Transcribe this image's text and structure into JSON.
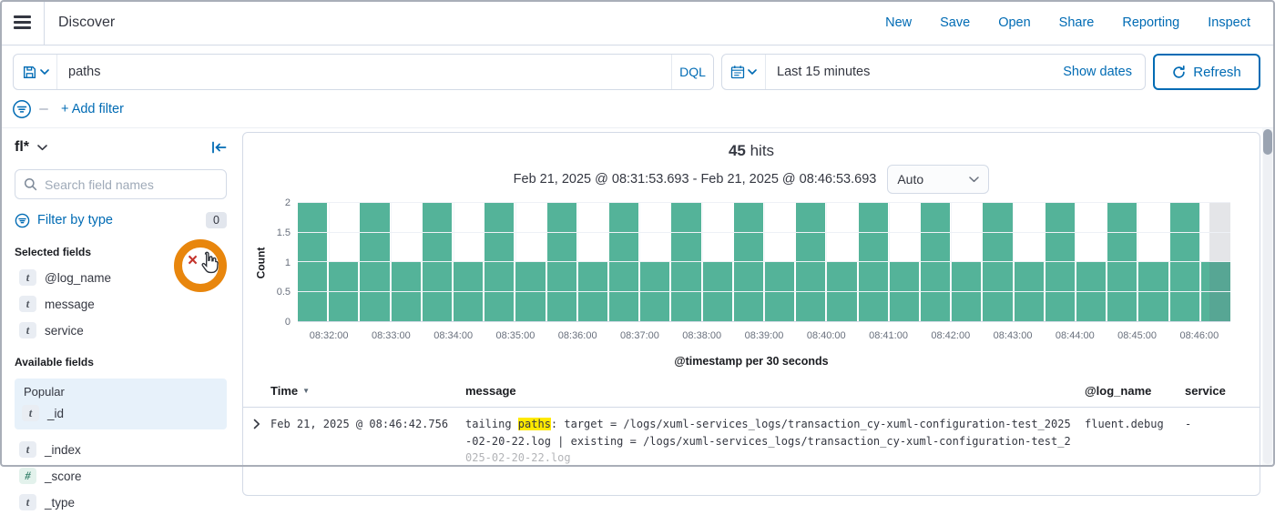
{
  "header": {
    "title": "Discover",
    "nav": [
      {
        "label": "New"
      },
      {
        "label": "Save"
      },
      {
        "label": "Open"
      },
      {
        "label": "Share"
      },
      {
        "label": "Reporting"
      },
      {
        "label": "Inspect"
      }
    ]
  },
  "query_bar": {
    "query": "paths",
    "language_button": "DQL",
    "time_value": "Last 15 minutes",
    "show_dates_label": "Show dates",
    "refresh_label": "Refresh"
  },
  "filter_bar": {
    "add_filter_label": "+ Add filter"
  },
  "sidebar": {
    "index_pattern": "fl*",
    "field_search_placeholder": "Search field names",
    "filter_by_type_label": "Filter by type",
    "filter_by_type_count": "0",
    "selected_fields_title": "Selected fields",
    "selected_fields": [
      {
        "type": "t",
        "name": "@log_name"
      },
      {
        "type": "t",
        "name": "message"
      },
      {
        "type": "t",
        "name": "service"
      }
    ],
    "available_fields_title": "Available fields",
    "popular_label": "Popular",
    "popular_fields": [
      {
        "type": "t",
        "name": "_id"
      }
    ],
    "other_fields": [
      {
        "type": "t",
        "name": "_index"
      },
      {
        "type": "#",
        "name": "_score"
      },
      {
        "type": "t",
        "name": "_type"
      }
    ]
  },
  "results_header": {
    "hits_value": "45",
    "hits_label": "hits",
    "chart_time_range": "Feb 21, 2025 @ 08:31:53.693 - Feb 21, 2025 @ 08:46:53.693",
    "interval_value": "Auto"
  },
  "chart_data": {
    "type": "bar",
    "title": "45 hits",
    "xlabel": "@timestamp per 30 seconds",
    "ylabel": "Count",
    "ylim": [
      0,
      2
    ],
    "yticks": [
      0,
      0.5,
      1,
      1.5,
      2
    ],
    "bucket_interval_seconds": 30,
    "x_tick_labels": [
      "08:32:00",
      "08:33:00",
      "08:34:00",
      "08:35:00",
      "08:36:00",
      "08:37:00",
      "08:38:00",
      "08:39:00",
      "08:40:00",
      "08:41:00",
      "08:42:00",
      "08:43:00",
      "08:44:00",
      "08:45:00",
      "08:46:00"
    ],
    "values": [
      2,
      1,
      2,
      1,
      2,
      1,
      2,
      1,
      2,
      1,
      2,
      1,
      2,
      1,
      2,
      1,
      2,
      1,
      2,
      1,
      2,
      1,
      2,
      1,
      2,
      1,
      2,
      1,
      2,
      1
    ],
    "bar_color": "#54B399",
    "partial_bucket_at_end": true,
    "grid": true,
    "legend": false
  },
  "table": {
    "columns": [
      {
        "label": "Time",
        "sorted": "desc"
      },
      {
        "label": "message"
      },
      {
        "label": "@log_name"
      },
      {
        "label": "service"
      }
    ],
    "rows": [
      {
        "time": "Feb 21, 2025 @ 08:46:42.756",
        "message_pre": "tailing ",
        "message_highlight": "paths",
        "message_post": ": target = /logs/xuml-services_logs/transaction_cy-xuml-configuration-test_2025-02-20-22.log | existing = /logs/xuml-services_logs/transaction_cy-xuml-configuration-test_2025-02-20-22.log",
        "log_name": "fluent.debug",
        "service": "-"
      }
    ]
  },
  "icons": {
    "sort_desc": "▼",
    "remove_field": "×"
  },
  "colors": {
    "accent_blue": "#006BB4",
    "bar_teal": "#54B399",
    "highlight_yellow": "#FFE900",
    "annotation_orange": "#E8860D"
  }
}
